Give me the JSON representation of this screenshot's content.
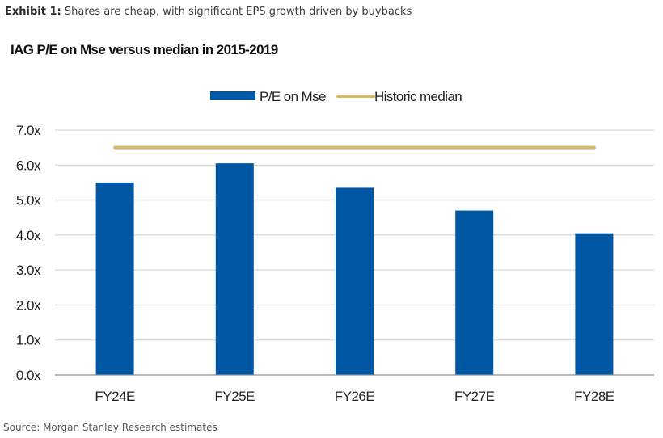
{
  "exhibit": {
    "label": "Exhibit 1:",
    "text": " Shares are cheap, with significant EPS growth driven by buybacks"
  },
  "source": "Source: Morgan Stanley Research estimates",
  "colors": {
    "bar": "#0057A4",
    "median": "#D4B96A",
    "grid": "#D9D9D9",
    "axis": "#8C8C8C"
  },
  "chart_data": {
    "type": "bar",
    "title": "IAG P/E on Mse versus median in 2015-2019",
    "categories": [
      "FY24E",
      "FY25E",
      "FY26E",
      "FY27E",
      "FY28E"
    ],
    "series": [
      {
        "name": "P/E on Mse",
        "type": "bar",
        "values": [
          5.5,
          6.05,
          5.35,
          4.7,
          4.05
        ]
      },
      {
        "name": "Historic median",
        "type": "line",
        "values": [
          6.5,
          6.5,
          6.5,
          6.5,
          6.5
        ]
      }
    ],
    "xlabel": "",
    "ylabel": "",
    "ylim": [
      0,
      7
    ],
    "yticks": [
      0,
      1,
      2,
      3,
      4,
      5,
      6,
      7
    ],
    "ytick_labels": [
      "0.0x",
      "1.0x",
      "2.0x",
      "3.0x",
      "4.0x",
      "5.0x",
      "6.0x",
      "7.0x"
    ],
    "grid": true,
    "legend": "top-center"
  }
}
